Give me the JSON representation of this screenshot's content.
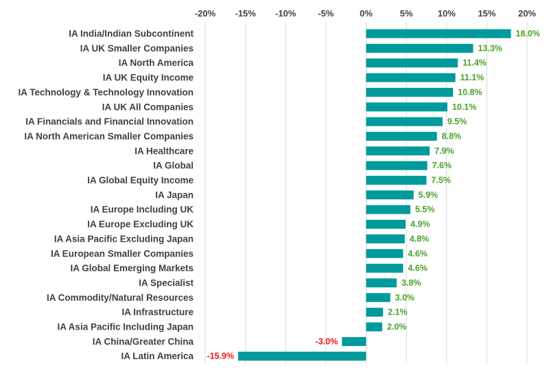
{
  "chart_data": {
    "type": "bar",
    "orientation": "horizontal",
    "categories": [
      "IA India/Indian Subcontinent",
      "IA UK Smaller Companies",
      "IA North America",
      "IA UK Equity Income",
      "IA Technology & Technology Innovation",
      "IA UK All Companies",
      "IA Financials and Financial Innovation",
      "IA North American Smaller Companies",
      "IA Healthcare",
      "IA Global",
      "IA Global Equity Income",
      "IA Japan",
      "IA Europe Including UK",
      "IA Europe Excluding UK",
      "IA Asia Pacific Excluding Japan",
      "IA European Smaller Companies",
      "IA Global Emerging Markets",
      "IA Specialist",
      "IA Commodity/Natural Resources",
      "IA Infrastructure",
      "IA Asia Pacific Including Japan",
      "IA China/Greater China",
      "IA Latin America"
    ],
    "values": [
      18.0,
      13.3,
      11.4,
      11.1,
      10.8,
      10.1,
      9.5,
      8.8,
      7.9,
      7.6,
      7.5,
      5.9,
      5.5,
      4.9,
      4.8,
      4.6,
      4.6,
      3.8,
      3.0,
      2.1,
      2.0,
      -3.0,
      -15.9
    ],
    "data_labels": [
      "18.0%",
      "13.3%",
      "11.4%",
      "11.1%",
      "10.8%",
      "10.1%",
      "9.5%",
      "8.8%",
      "7.9%",
      "7.6%",
      "7.5%",
      "5.9%",
      "5.5%",
      "4.9%",
      "4.8%",
      "4.6%",
      "4.6%",
      "3.8%",
      "3.0%",
      "2.1%",
      "2.0%",
      "-3.0%",
      "-15.9%"
    ],
    "xlim": [
      -20,
      20
    ],
    "xticks": [
      -20,
      -15,
      -10,
      -5,
      0,
      5,
      10,
      15,
      20
    ],
    "xtick_labels": [
      "-20%",
      "-15%",
      "-10%",
      "-5%",
      "0%",
      "5%",
      "10%",
      "15%",
      "20%"
    ],
    "axis_position": "top",
    "grid": true,
    "legend": false,
    "title": "",
    "xlabel": "",
    "ylabel": "",
    "colors": {
      "bar": "#009a9c",
      "positive_label": "#4aa12b",
      "negative_label": "#e8161b",
      "gridline": "#d9d9d9",
      "text": "#404040"
    }
  }
}
